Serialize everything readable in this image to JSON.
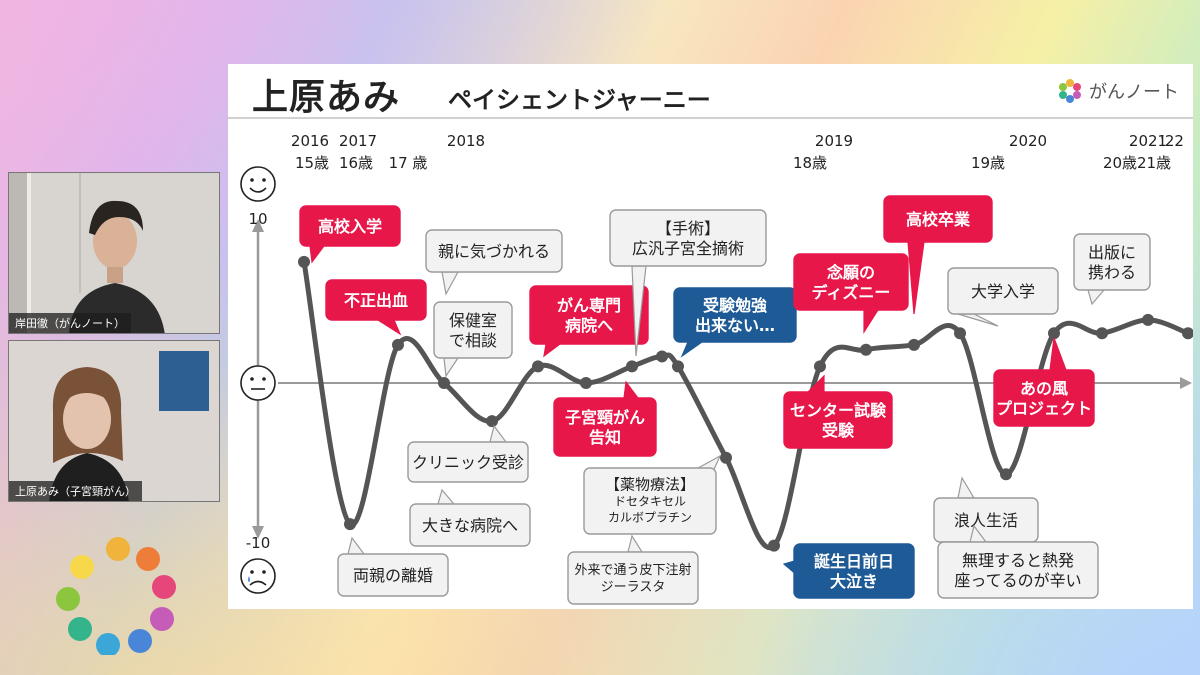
{
  "slide": {
    "title": "上原あみ",
    "subtitle": "ペイシェントジャーニー",
    "brand_name": "がんノート"
  },
  "participants": [
    {
      "name": "岸田徹（がんノート）"
    },
    {
      "name": "上原あみ（子宮頸がん）"
    }
  ],
  "colors": {
    "accent_red": "#e8174a",
    "accent_blue": "#1e5a96",
    "line_gray": "#555555",
    "callout_border": "#9a9a9a"
  },
  "chart_data": {
    "type": "line",
    "ylim": [
      -10,
      10
    ],
    "y_tick_labels": [
      "10",
      "-10"
    ],
    "y_top_icon": "happy-face-icon",
    "y_bottom_icon": "sad-face-icon",
    "timeline_labels": [
      {
        "year": "2016",
        "age": "15歳"
      },
      {
        "year": "2017",
        "age": "16歳"
      },
      {
        "year": "",
        "age": "17 歳"
      },
      {
        "year": "2018",
        "age": ""
      },
      {
        "year": "2019",
        "age": "18歳"
      },
      {
        "year": "2020",
        "age": "19歳"
      },
      {
        "year": "2021",
        "age": "20歳"
      },
      {
        "year": "‘22",
        "age": "21歳"
      }
    ],
    "series": [
      {
        "values": [
          7.3,
          -8.5,
          2.3,
          0,
          -2.3,
          1,
          0,
          1,
          1.6,
          1,
          -4.5,
          -9.8,
          1,
          2,
          2.3,
          3,
          -5.5,
          3,
          3,
          3.8,
          3
        ]
      }
    ],
    "annotations": [
      {
        "text": [
          "高校入学"
        ],
        "style": "red"
      },
      {
        "text": [
          "不正出血"
        ],
        "style": "red"
      },
      {
        "text": [
          "親に気づかれる"
        ],
        "style": "plain"
      },
      {
        "text": [
          "保健室",
          "で相談"
        ],
        "style": "plain"
      },
      {
        "text": [
          "クリニック受診"
        ],
        "style": "plain"
      },
      {
        "text": [
          "大きな病院へ"
        ],
        "style": "plain"
      },
      {
        "text": [
          "両親の離婚"
        ],
        "style": "plain"
      },
      {
        "text": [
          "がん専門",
          "病院へ"
        ],
        "style": "red"
      },
      {
        "text": [
          "子宮頸がん",
          "告知"
        ],
        "style": "red"
      },
      {
        "text": [
          "【手術】",
          "広汎子宮全摘術"
        ],
        "style": "plain"
      },
      {
        "text": [
          "受験勉強",
          "出来ない…"
        ],
        "style": "blue"
      },
      {
        "text": [
          "【薬物療法】",
          "ドセタキセル",
          "カルボプラチン"
        ],
        "style": "plain"
      },
      {
        "text": [
          "外来で通う皮下注射",
          "ジーラスタ"
        ],
        "style": "plain"
      },
      {
        "text": [
          "誕生日前日",
          "大泣き"
        ],
        "style": "blue"
      },
      {
        "text": [
          "センター試験",
          "受験"
        ],
        "style": "red"
      },
      {
        "text": [
          "念願の",
          "ディズニー"
        ],
        "style": "red"
      },
      {
        "text": [
          "高校卒業"
        ],
        "style": "red"
      },
      {
        "text": [
          "浪人生活"
        ],
        "style": "plain"
      },
      {
        "text": [
          "無理すると熱発",
          "座ってるのが辛い"
        ],
        "style": "plain"
      },
      {
        "text": [
          "大学入学"
        ],
        "style": "plain"
      },
      {
        "text": [
          "あの風",
          "プロジェクト"
        ],
        "style": "red"
      },
      {
        "text": [
          "出版に",
          "携わる"
        ],
        "style": "plain"
      }
    ]
  }
}
